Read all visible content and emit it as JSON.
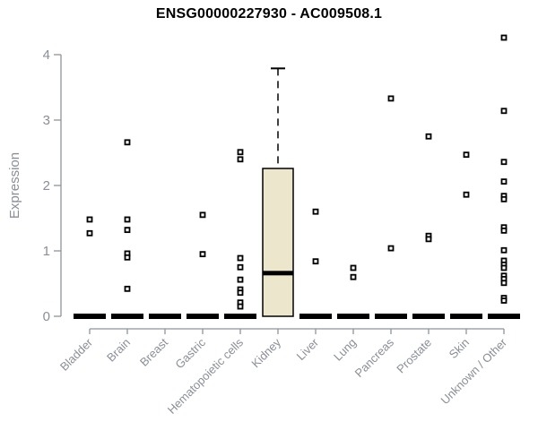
{
  "page": {
    "background": "#ffffff"
  },
  "chart_data": {
    "type": "boxplot",
    "title": "ENSG00000227930 - AC009508.1",
    "xlabel": "",
    "ylabel": "Expression",
    "ylim": [
      0,
      4.3
    ],
    "yticks": [
      0,
      1,
      2,
      3,
      4
    ],
    "grid": false,
    "legend": "none",
    "marker_style": "open-square",
    "categories": [
      "Bladder",
      "Brain",
      "Breast",
      "Gastric",
      "Hematopoietic cells",
      "Kidney",
      "Liver",
      "Lung",
      "Pancreas",
      "Prostate",
      "Skin",
      "Unknown / Other"
    ],
    "groups": [
      {
        "name": "Bladder",
        "median": 0,
        "outliers": [
          1.48,
          1.27
        ]
      },
      {
        "name": "Brain",
        "median": 0,
        "outliers": [
          2.66,
          1.48,
          1.32,
          0.96,
          0.9,
          0.42
        ]
      },
      {
        "name": "Breast",
        "median": 0,
        "outliers": []
      },
      {
        "name": "Gastric",
        "median": 0,
        "outliers": [
          1.55,
          0.95
        ]
      },
      {
        "name": "Hematopoietic cells",
        "median": 0,
        "outliers": [
          2.51,
          2.4,
          0.89,
          0.75,
          0.56,
          0.41,
          0.36,
          0.21,
          0.15
        ]
      },
      {
        "name": "Kidney",
        "box": {
          "whisker_high": 3.79,
          "q3": 2.26,
          "median": 0.66,
          "q1": 0
        },
        "outliers": []
      },
      {
        "name": "Liver",
        "median": 0,
        "outliers": [
          1.6,
          0.84
        ]
      },
      {
        "name": "Lung",
        "median": 0,
        "outliers": [
          0.74,
          0.6
        ]
      },
      {
        "name": "Pancreas",
        "median": 0,
        "outliers": [
          3.33,
          1.04
        ]
      },
      {
        "name": "Prostate",
        "median": 0,
        "outliers": [
          2.75,
          1.23,
          1.18
        ]
      },
      {
        "name": "Skin",
        "median": 0,
        "outliers": [
          2.47,
          1.86
        ]
      },
      {
        "name": "Unknown / Other",
        "median": 0,
        "outliers": [
          4.26,
          3.14,
          2.36,
          2.06,
          1.84,
          1.79,
          1.36,
          1.31,
          1.01,
          0.85,
          0.79,
          0.74,
          0.62,
          0.57,
          0.51,
          0.28,
          0.24
        ]
      }
    ]
  },
  "colors": {
    "title": "#000000",
    "axis": "#8f9499",
    "tick_label": "#8a8f96",
    "box_fill": "#ece7cc",
    "box_stroke": "#000000",
    "median": "#000000",
    "zero_bar": "#000000",
    "outlier_stroke": "#000000",
    "outlier_fill": "#ffffff"
  }
}
